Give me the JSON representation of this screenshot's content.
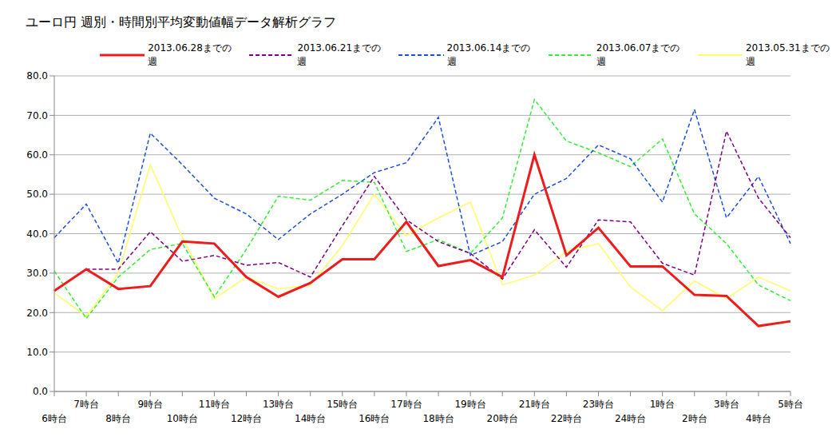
{
  "chart_data": {
    "type": "line",
    "title": "ユーロ円 週別・時間別平均変動値幅データ解析グラフ",
    "categories": [
      "6時台",
      "7時台",
      "8時台",
      "9時台",
      "10時台",
      "11時台",
      "12時台",
      "13時台",
      "14時台",
      "15時台",
      "16時台",
      "17時台",
      "18時台",
      "19時台",
      "20時台",
      "21時台",
      "22時台",
      "23時台",
      "24時台",
      "1時台",
      "2時台",
      "3時台",
      "4時台",
      "5時台"
    ],
    "series": [
      {
        "name": "2013.06.28までの週",
        "color": "#ee1c1c",
        "line_style": "solid",
        "values": [
          25.5,
          31,
          26,
          26.7,
          38,
          37.5,
          29,
          24,
          27.5,
          33.5,
          33.5,
          43,
          31.8,
          33.3,
          29,
          60,
          34.5,
          41.5,
          31.7,
          31.7,
          24.5,
          24.2,
          16.6,
          17.8
        ]
      },
      {
        "name": "2013.06.21までの週",
        "color": "#800080",
        "line_style": "dashed",
        "values": [
          25.5,
          31,
          31,
          40.5,
          33,
          34.5,
          32,
          32.7,
          29,
          42,
          54.5,
          43.5,
          38,
          35,
          28.5,
          41,
          31.5,
          43.5,
          43,
          32.5,
          29.5,
          66,
          49,
          39
        ]
      },
      {
        "name": "2013.06.14までの週",
        "color": "#1e50e0",
        "line_style": "dashed",
        "values": [
          39,
          47.5,
          32.5,
          65.5,
          57.5,
          49,
          45,
          38.5,
          45,
          50,
          55.5,
          58,
          69.5,
          34.5,
          38,
          50,
          54,
          62.5,
          59,
          48,
          71.5,
          44,
          54.5,
          37.5
        ]
      },
      {
        "name": "2013.06.07までの週",
        "color": "#33ee33",
        "line_style": "dashed",
        "values": [
          30.5,
          18.5,
          29,
          36,
          37.5,
          24,
          36,
          49.5,
          48.5,
          53.5,
          53,
          35.5,
          38.5,
          35,
          44,
          74,
          63.5,
          60.5,
          57,
          64,
          45,
          37.5,
          27,
          23
        ]
      },
      {
        "name": "2013.05.31までの週",
        "color": "#ffff66",
        "line_style": "solid",
        "values": [
          25,
          19,
          30,
          57.5,
          39,
          23.5,
          29,
          26,
          27,
          37,
          50,
          39.5,
          44,
          48,
          27,
          29.5,
          35.5,
          37.5,
          26.5,
          20.5,
          28,
          23.5,
          29,
          25.5
        ]
      }
    ],
    "ylim": [
      0,
      80
    ],
    "yticks": [
      {
        "value": 0,
        "label": "0.0"
      },
      {
        "value": 10,
        "label": "10.0"
      },
      {
        "value": 20,
        "label": "20.0"
      },
      {
        "value": 30,
        "label": "30.0"
      },
      {
        "value": 40,
        "label": "40.0"
      },
      {
        "value": 50,
        "label": "50.0"
      },
      {
        "value": 60,
        "label": "60.0"
      },
      {
        "value": 70,
        "label": "70.0"
      },
      {
        "value": 80,
        "label": "80.0"
      }
    ],
    "grid": true,
    "legend": "top"
  }
}
